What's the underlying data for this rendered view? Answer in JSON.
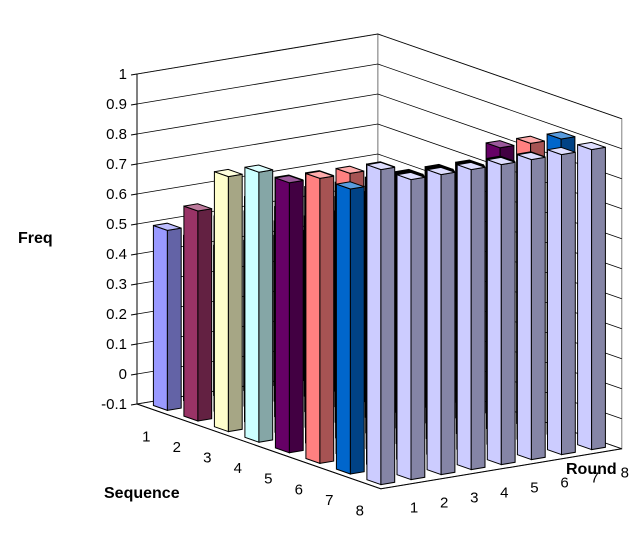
{
  "chart_data": {
    "type": "bar3d",
    "ylabel": "Freq",
    "xlabel": "Sequence",
    "zlabel": "Round",
    "ylim": [
      -0.1,
      1
    ],
    "y_ticks": [
      "-0.1",
      "0",
      "0.1",
      "0.2",
      "0.3",
      "0.4",
      "0.5",
      "0.6",
      "0.7",
      "0.8",
      "0.9",
      "1"
    ],
    "x_categories": [
      "1",
      "2",
      "3",
      "4",
      "5",
      "6",
      "7",
      "8"
    ],
    "z_categories": [
      "1",
      "2",
      "3",
      "4",
      "5",
      "6",
      "7",
      "8"
    ],
    "grid": true,
    "series_colors": [
      "#9999ff",
      "#993366",
      "#ffffcc",
      "#ccffff",
      "#660066",
      "#ff8080",
      "#0066cc",
      "#ccccff"
    ],
    "values": [
      [
        0.5,
        0.6,
        0.75,
        0.8,
        0.8,
        0.85,
        0.85,
        0.95
      ],
      [
        0.45,
        0.55,
        0.65,
        0.75,
        0.8,
        0.85,
        0.9,
        0.9
      ],
      [
        0.4,
        0.55,
        0.6,
        0.7,
        0.75,
        0.8,
        0.85,
        0.9
      ],
      [
        0.4,
        0.5,
        0.65,
        0.7,
        0.75,
        0.8,
        0.85,
        0.9
      ],
      [
        0.4,
        0.5,
        0.6,
        0.7,
        0.75,
        0.8,
        0.85,
        0.9
      ],
      [
        0.4,
        0.5,
        0.6,
        0.7,
        0.75,
        0.8,
        0.85,
        0.9
      ],
      [
        0.4,
        0.5,
        0.65,
        0.7,
        0.75,
        0.8,
        0.85,
        0.9
      ],
      [
        0.4,
        0.55,
        0.65,
        0.7,
        0.8,
        0.85,
        0.9,
        0.9
      ]
    ]
  }
}
